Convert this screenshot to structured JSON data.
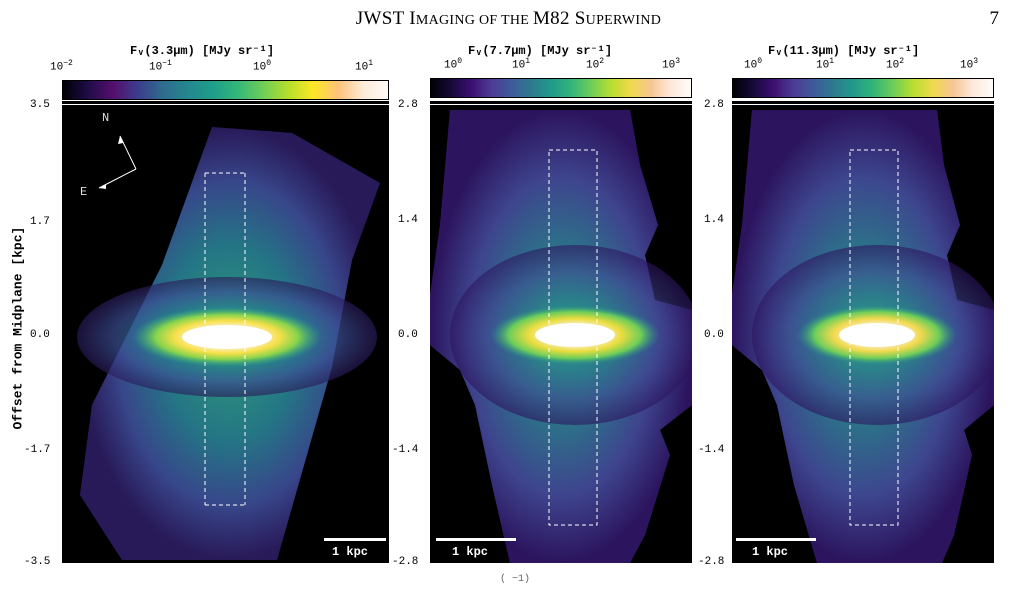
{
  "header": {
    "title_first": "JWST I",
    "title_rest": "MAGING OF THE ",
    "title_m82": "M82 S",
    "title_end": "UPERWIND",
    "page_number": "7"
  },
  "panels": [
    {
      "cbar_label": "Fᵥ(3.3μm) [MJy sr⁻¹]",
      "ticks": {
        "t1": "10",
        "t1e": "−2",
        "t2": "10",
        "t2e": "−1",
        "t3": "10",
        "t3e": "0",
        "t4": "10",
        "t4e": "1"
      },
      "scalebar": "1 kpc",
      "yticks": {
        "top": "3.5",
        "upper": "1.7",
        "mid": "0.0",
        "lower": "-1.7",
        "bottom": "-3.5"
      }
    },
    {
      "cbar_label": "Fᵥ(7.7μm) [MJy sr⁻¹]",
      "ticks": {
        "t1": "10",
        "t1e": "0",
        "t2": "10",
        "t2e": "1",
        "t3": "10",
        "t3e": "2",
        "t4": "10",
        "t4e": "3"
      },
      "scalebar": "1 kpc",
      "yticks": {
        "top": "2.8",
        "upper": "1.4",
        "mid": "0.0",
        "lower": "-1.4",
        "bottom": "-2.8"
      }
    },
    {
      "cbar_label": "Fᵥ(11.3μm) [MJy sr⁻¹]",
      "ticks": {
        "t1": "10",
        "t1e": "0",
        "t2": "10",
        "t2e": "1",
        "t3": "10",
        "t3e": "2",
        "t4": "10",
        "t4e": "3"
      },
      "scalebar": "1 kpc",
      "yticks": {
        "top": "2.8",
        "upper": "1.4",
        "mid": "0.0",
        "lower": "-1.4",
        "bottom": "-2.8"
      }
    }
  ],
  "yaxis_title": "Offset from Midplane [kpc]",
  "compass": {
    "north": "N",
    "east": "E"
  },
  "caption_fragment": "(        −1)"
}
